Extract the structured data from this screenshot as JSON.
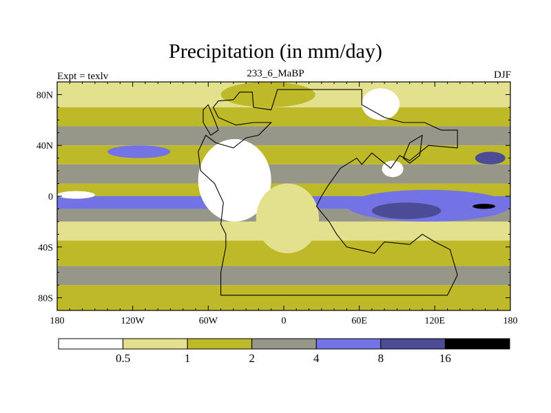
{
  "title": "Precipitation (in mm/day)",
  "subtitle_left": "Expt = texlv",
  "subtitle_center": "233_6_MaBP",
  "subtitle_right": "DJF",
  "chart_data": {
    "type": "heatmap",
    "variable": "Precipitation",
    "units": "mm/day",
    "season": "DJF",
    "x_axis": {
      "range": [
        -180,
        180
      ],
      "ticks": [
        -180,
        -120,
        -60,
        0,
        60,
        120,
        180
      ],
      "tick_labels": [
        "180",
        "120W",
        "60W",
        "0",
        "60E",
        "120E",
        "180"
      ]
    },
    "y_axis": {
      "range": [
        -90,
        90
      ],
      "ticks": [
        80,
        40,
        0,
        -40,
        -80
      ],
      "tick_labels": [
        "80N",
        "40N",
        "0",
        "40S",
        "80S"
      ]
    },
    "levels": [
      0.5,
      1,
      2,
      4,
      8,
      16
    ],
    "level_labels": [
      "0.5",
      "1",
      "2",
      "4",
      "8",
      "16"
    ],
    "colors": [
      "#ffffff",
      "#e3e08e",
      "#bdb928",
      "#979789",
      "#7373e6",
      "#4c4c96",
      "#000000"
    ],
    "bands": [
      {
        "lat": [
          70,
          90
        ],
        "class": 1
      },
      {
        "lat": [
          55,
          70
        ],
        "class": 2
      },
      {
        "lat": [
          40,
          55
        ],
        "class": 3
      },
      {
        "lat": [
          25,
          40
        ],
        "class": 2
      },
      {
        "lat": [
          10,
          25
        ],
        "class": 3
      },
      {
        "lat": [
          0,
          10
        ],
        "class": 2
      },
      {
        "lat": [
          -10,
          0
        ],
        "class": 4
      },
      {
        "lat": [
          -20,
          -10
        ],
        "class": 3
      },
      {
        "lat": [
          -35,
          -20
        ],
        "class": 1
      },
      {
        "lat": [
          -55,
          -35
        ],
        "class": 2
      },
      {
        "lat": [
          -70,
          -55
        ],
        "class": 3
      },
      {
        "lat": [
          -90,
          -70
        ],
        "class": 2
      }
    ],
    "features": [
      {
        "lon": [
          -68,
          -10
        ],
        "lat": [
          -20,
          45
        ],
        "class": 0
      },
      {
        "lon": [
          -22,
          28
        ],
        "lat": [
          -45,
          10
        ],
        "class": 1
      },
      {
        "lon": [
          50,
          180
        ],
        "lat": [
          -20,
          5
        ],
        "class": 4
      },
      {
        "lon": [
          70,
          125
        ],
        "lat": [
          -18,
          -5
        ],
        "class": 5
      },
      {
        "lon": [
          150,
          168
        ],
        "lat": [
          -10,
          -6
        ],
        "class": 6
      },
      {
        "lon": [
          -180,
          -150
        ],
        "lat": [
          -2,
          4
        ],
        "class": 0
      },
      {
        "lon": [
          152,
          176
        ],
        "lat": [
          25,
          35
        ],
        "class": 5
      },
      {
        "lon": [
          78,
          95
        ],
        "lat": [
          15,
          28
        ],
        "class": 0
      },
      {
        "lon": [
          -140,
          -90
        ],
        "lat": [
          30,
          40
        ],
        "class": 4
      },
      {
        "lon": [
          -50,
          25
        ],
        "lat": [
          70,
          90
        ],
        "class": 2
      },
      {
        "lon": [
          62,
          92
        ],
        "lat": [
          60,
          85
        ],
        "class": 0
      }
    ]
  }
}
